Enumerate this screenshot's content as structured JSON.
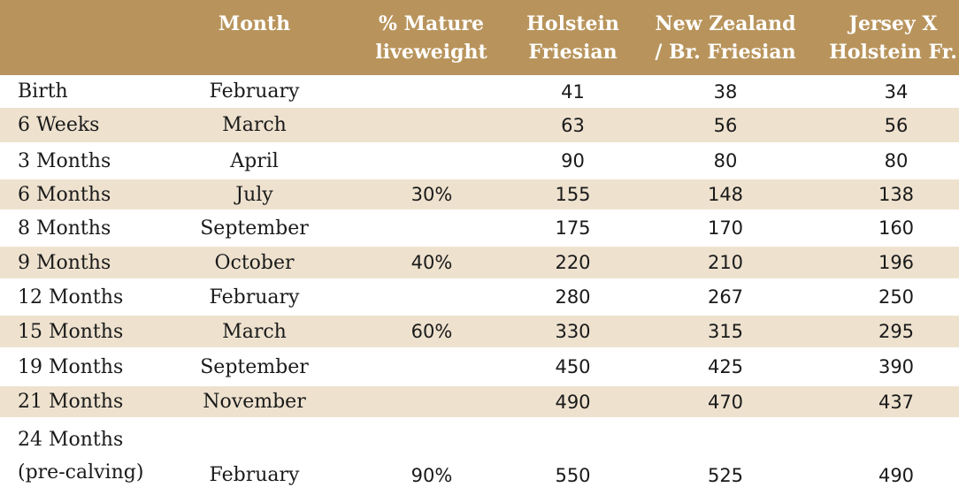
{
  "table": {
    "headers": {
      "month": [
        "Month"
      ],
      "pct": [
        "% Mature",
        "liveweight"
      ],
      "hf": [
        "Holstein",
        "Friesian"
      ],
      "nz": [
        "New Zealand",
        "/ Br. Friesian"
      ],
      "jx": [
        "Jersey X",
        "Holstein Fr."
      ]
    },
    "rows": [
      {
        "stage": "Birth",
        "month": "February",
        "pct": "",
        "hf": "41",
        "nz": "38",
        "jx": "34"
      },
      {
        "stage": "6 Weeks",
        "month": "March",
        "pct": "",
        "hf": "63",
        "nz": "56",
        "jx": "56"
      },
      {
        "stage": "3 Months",
        "month": "April",
        "pct": "",
        "hf": "90",
        "nz": "80",
        "jx": "80"
      },
      {
        "stage": "6 Months",
        "month": "July",
        "pct": "30%",
        "hf": "155",
        "nz": "148",
        "jx": "138"
      },
      {
        "stage": "8 Months",
        "month": "September",
        "pct": "",
        "hf": "175",
        "nz": "170",
        "jx": "160"
      },
      {
        "stage": "9 Months",
        "month": "October",
        "pct": "40%",
        "hf": "220",
        "nz": "210",
        "jx": "196"
      },
      {
        "stage": "12 Months",
        "month": "February",
        "pct": "",
        "hf": "280",
        "nz": "267",
        "jx": "250"
      },
      {
        "stage": "15 Months",
        "month": "March",
        "pct": "60%",
        "hf": "330",
        "nz": "315",
        "jx": "295"
      },
      {
        "stage": "19 Months",
        "month": "September",
        "pct": "",
        "hf": "450",
        "nz": "425",
        "jx": "390"
      },
      {
        "stage": "21 Months",
        "month": "November",
        "pct": "",
        "hf": "490",
        "nz": "470",
        "jx": "437"
      },
      {
        "stage": [
          "24 Months",
          "(pre-calving)"
        ],
        "month": "February",
        "pct": "90%",
        "hf": "550",
        "nz": "525",
        "jx": "490"
      }
    ]
  },
  "colors": {
    "header_bg": "#b8945c",
    "alt_row_bg": "#eee2cf"
  }
}
